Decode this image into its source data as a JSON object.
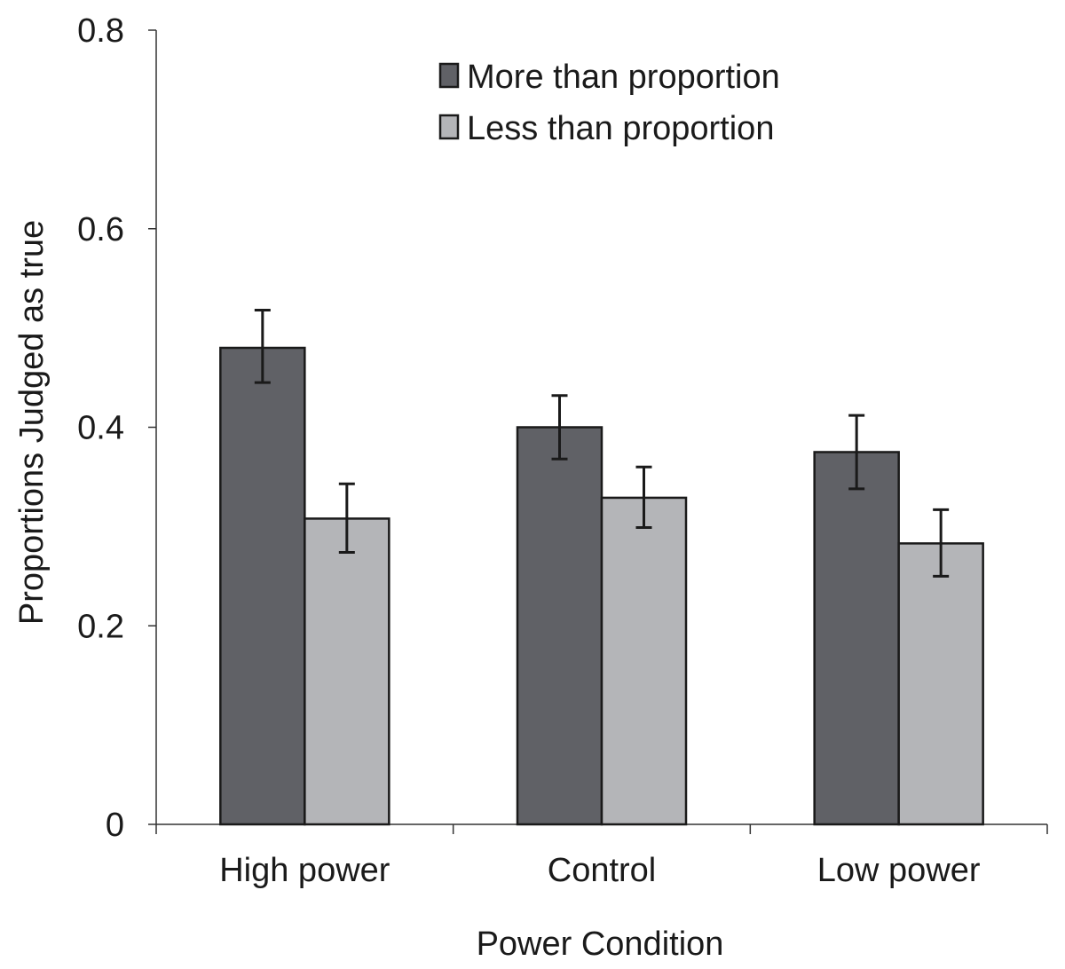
{
  "chart_data": {
    "type": "bar",
    "title": "",
    "xlabel": "Power Condition",
    "ylabel": "Proportions Judged as true",
    "ylim": [
      0,
      0.8
    ],
    "yticks": [
      0,
      0.2,
      0.4,
      0.6,
      0.8
    ],
    "ytick_labels": [
      "0",
      "0.2",
      "0.4",
      "0.6",
      "0.8"
    ],
    "categories": [
      "High power",
      "Control",
      "Low power"
    ],
    "series": [
      {
        "name": "More than proportion",
        "color": "#606166",
        "values": [
          0.48,
          0.4,
          0.375
        ],
        "error_low": [
          0.445,
          0.368,
          0.338
        ],
        "error_high": [
          0.518,
          0.432,
          0.412
        ]
      },
      {
        "name": "Less than proportion",
        "color": "#b4b5b8",
        "values": [
          0.308,
          0.329,
          0.283
        ],
        "error_low": [
          0.274,
          0.299,
          0.25
        ],
        "error_high": [
          0.343,
          0.36,
          0.317
        ]
      }
    ],
    "legend_position": "top-center",
    "grid": false
  }
}
